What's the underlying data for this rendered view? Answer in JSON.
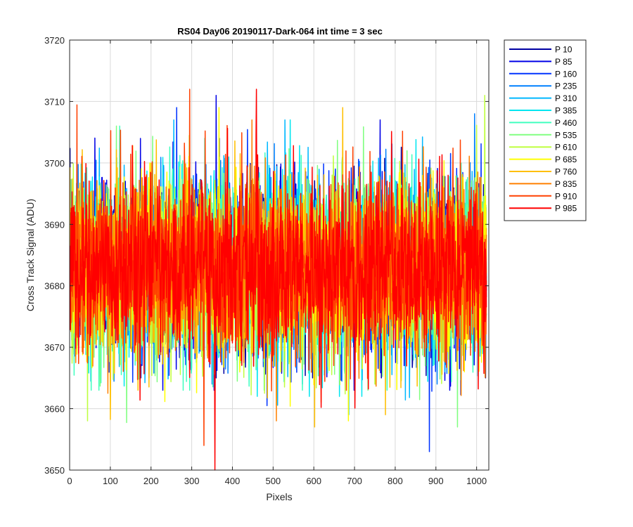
{
  "chart_data": {
    "type": "line",
    "title": "RS04 Day06 20190117-Dark-064 int time = 3 sec",
    "xlabel": "Pixels",
    "ylabel": "Cross Track Signal (ADU)",
    "xlim": [
      0,
      1030
    ],
    "ylim": [
      3650,
      3720
    ],
    "xticks": [
      0,
      100,
      200,
      300,
      400,
      500,
      600,
      700,
      800,
      900,
      1000
    ],
    "yticks": [
      3650,
      3660,
      3670,
      3680,
      3690,
      3700,
      3710,
      3720
    ],
    "xtick_labels": [
      "0",
      "100",
      "200",
      "300",
      "400",
      "500",
      "600",
      "700",
      "800",
      "900",
      "1000"
    ],
    "ytick_labels": [
      "3650",
      "3660",
      "3670",
      "3680",
      "3690",
      "3700",
      "3710",
      "3720"
    ],
    "grid": true,
    "legend_position": "outside-top-right",
    "x_count": 1024,
    "noise_mean": 3683,
    "noise_sd": 7,
    "series": [
      {
        "name": "P 10",
        "color": "#0000a3",
        "min": 3665,
        "max": 3704
      },
      {
        "name": "P 85",
        "color": "#0000e6",
        "min": 3663,
        "max": 3711
      },
      {
        "name": "P 160",
        "color": "#0033ff",
        "min": 3653,
        "max": 3709
      },
      {
        "name": "P 235",
        "color": "#0080ff",
        "min": 3664,
        "max": 3708
      },
      {
        "name": "P 310",
        "color": "#00b8ff",
        "min": 3659,
        "max": 3707
      },
      {
        "name": "P 385",
        "color": "#00e6f0",
        "min": 3662,
        "max": 3707
      },
      {
        "name": "P 460",
        "color": "#40ffbf",
        "min": 3663,
        "max": 3706
      },
      {
        "name": "P 535",
        "color": "#80ff80",
        "min": 3657,
        "max": 3706
      },
      {
        "name": "P 610",
        "color": "#bfff40",
        "min": 3658,
        "max": 3711
      },
      {
        "name": "P 685",
        "color": "#ffff00",
        "min": 3658,
        "max": 3709
      },
      {
        "name": "P 760",
        "color": "#ffbf00",
        "min": 3657,
        "max": 3709
      },
      {
        "name": "P 835",
        "color": "#ff8000",
        "min": 3658,
        "max": 3707
      },
      {
        "name": "P 910",
        "color": "#ff4000",
        "min": 3654,
        "max": 3712
      },
      {
        "name": "P 985",
        "color": "#ff0000",
        "min": 3650,
        "max": 3712
      }
    ]
  }
}
